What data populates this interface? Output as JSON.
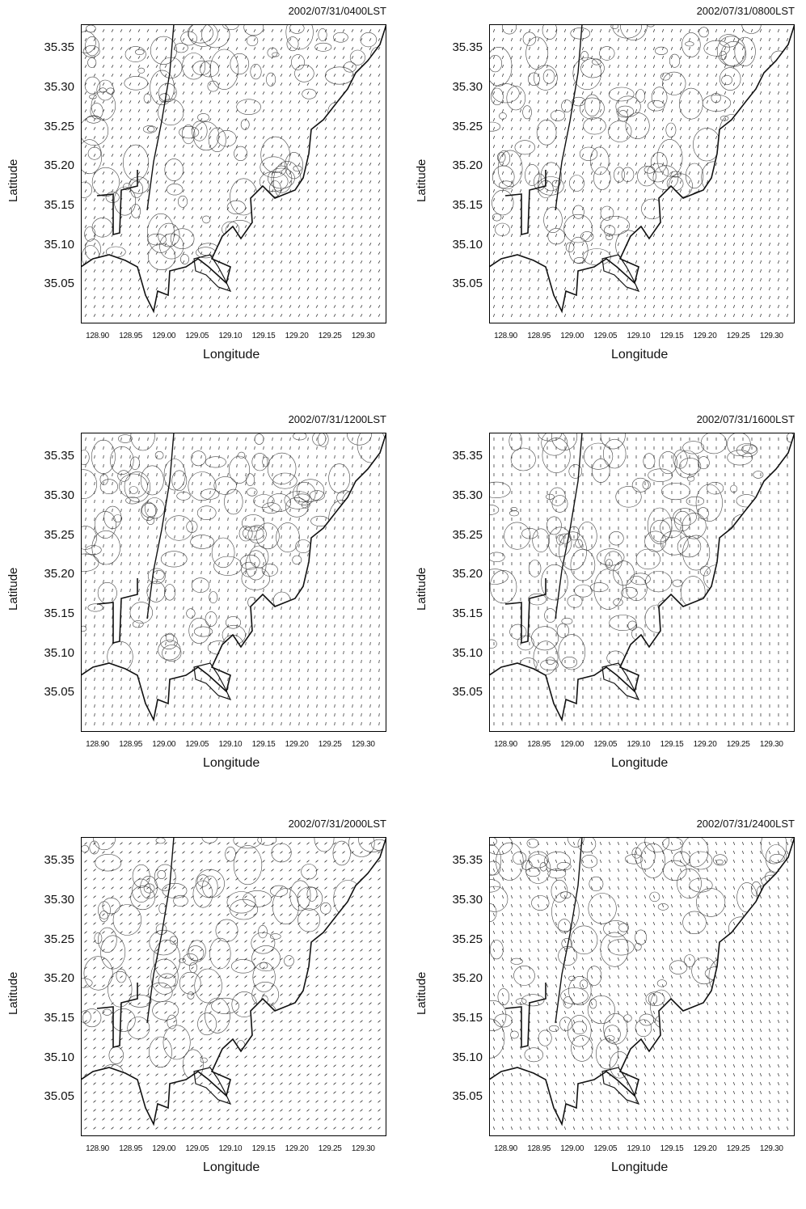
{
  "axes": {
    "xlabel": "Longitude",
    "ylabel": "Latitude",
    "xticks": [
      "128.90",
      "128.95",
      "129.00",
      "129.05",
      "129.10",
      "129.15",
      "129.20",
      "129.25",
      "129.30"
    ],
    "yticks": [
      "35.35",
      "35.30",
      "35.25",
      "35.20",
      "35.15",
      "35.10",
      "35.05"
    ]
  },
  "panels": [
    {
      "title": "2002/07/31/0400LST"
    },
    {
      "title": "2002/07/31/0800LST"
    },
    {
      "title": "2002/07/31/1200LST"
    },
    {
      "title": "2002/07/31/1600LST"
    },
    {
      "title": "2002/07/31/2000LST"
    },
    {
      "title": "2002/07/31/2400LST"
    }
  ]
}
